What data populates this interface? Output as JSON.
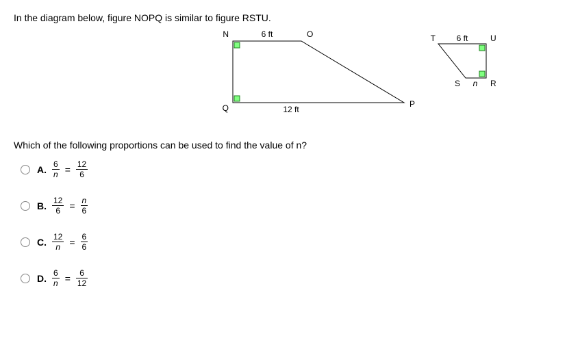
{
  "question": "In the diagram below, figure NOPQ is similar to figure RSTU.",
  "sub_question": "Which of the following proportions can be used to find the value of n?",
  "nvar": "n",
  "fig1": {
    "N": "N",
    "O": "O",
    "P": "P",
    "Q": "Q",
    "top_len": "6 ft",
    "bottom_len": "12 ft",
    "label_color": "#000000",
    "fill": "#ffffff",
    "stroke": "#000000",
    "marker_fill": "#80ff80",
    "marker_stroke": "#208020"
  },
  "fig2": {
    "T": "T",
    "U": "U",
    "S": "S",
    "R": "R",
    "top_len": "6 ft",
    "bottom_len": "n",
    "label_color": "#000000",
    "fill": "#ffffff",
    "stroke": "#000000",
    "marker_fill": "#80ff80",
    "marker_stroke": "#208020"
  },
  "options": [
    {
      "letter": "A.",
      "lhs_num": "6",
      "lhs_den": "n",
      "rhs_num": "12",
      "rhs_den": "6",
      "lhs_den_italic": true,
      "rhs_num_italic": false,
      "rhs_den_italic": false
    },
    {
      "letter": "B.",
      "lhs_num": "12",
      "lhs_den": "6",
      "rhs_num": "n",
      "rhs_den": "6",
      "lhs_den_italic": false,
      "rhs_num_italic": true,
      "rhs_den_italic": false
    },
    {
      "letter": "C.",
      "lhs_num": "12",
      "lhs_den": "n",
      "rhs_num": "6",
      "rhs_den": "6",
      "lhs_den_italic": true,
      "rhs_num_italic": false,
      "rhs_den_italic": false
    },
    {
      "letter": "D.",
      "lhs_num": "6",
      "lhs_den": "n",
      "rhs_num": "6",
      "rhs_den": "12",
      "lhs_den_italic": true,
      "rhs_num_italic": false,
      "rhs_den_italic": false
    }
  ],
  "eq": "="
}
